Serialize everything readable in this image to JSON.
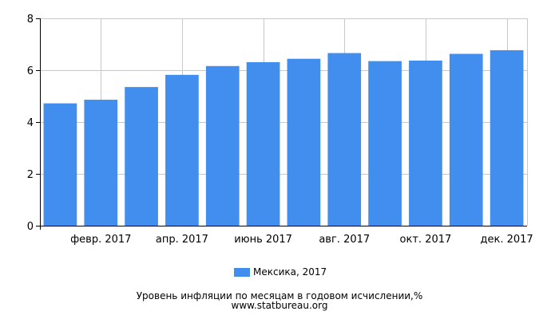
{
  "chart_data": {
    "type": "bar",
    "categories": [
      "янв. 2017",
      "февр. 2017",
      "март 2017",
      "апр. 2017",
      "май 2017",
      "июнь 2017",
      "июль 2017",
      "авг. 2017",
      "сент. 2017",
      "окт. 2017",
      "нояб. 2017",
      "дек. 2017"
    ],
    "series": [
      {
        "name": "Мексика, 2017",
        "values": [
          4.72,
          4.86,
          5.35,
          5.82,
          6.16,
          6.31,
          6.44,
          6.66,
          6.35,
          6.37,
          6.63,
          6.77
        ]
      }
    ],
    "visible_x_tick_labels": [
      "февр. 2017",
      "апр. 2017",
      "июнь 2017",
      "авг. 2017",
      "окт. 2017",
      "дек. 2017"
    ],
    "y_ticks": [
      0,
      2,
      4,
      6,
      8
    ],
    "ylim": [
      0,
      8
    ],
    "grid": true,
    "legend_position": "bottom-center",
    "bar_color": "#418eef"
  },
  "footer": {
    "line1": "Уровень инфляции по месяцам в годовом исчислении,%",
    "line2": "www.statbureau.org"
  }
}
